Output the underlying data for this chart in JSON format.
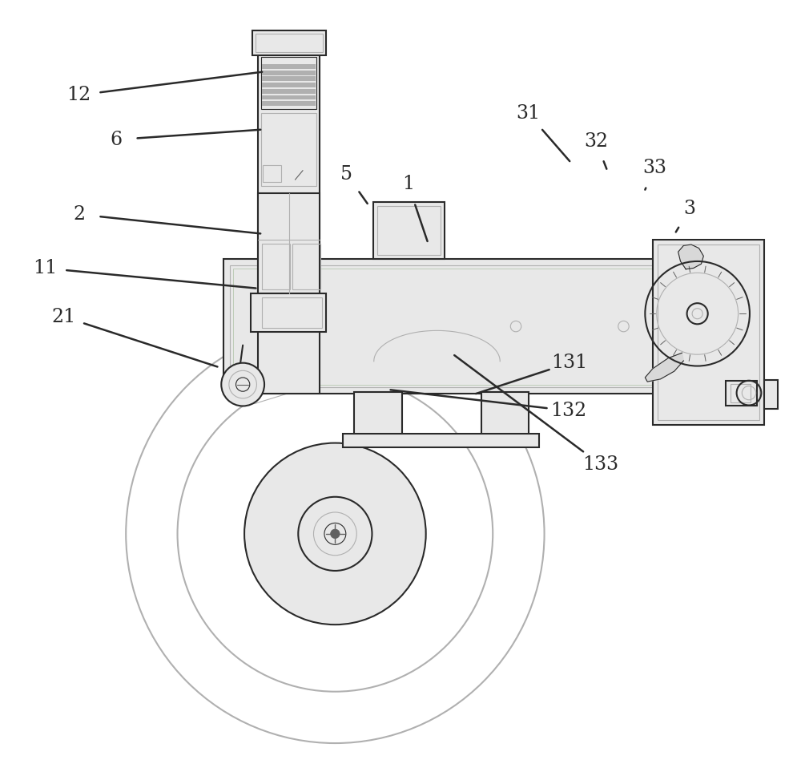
{
  "background_color": "#ffffff",
  "lc": "#2a2a2a",
  "lg": "#d8d8d8",
  "mg": "#b0b0b0",
  "vlg": "#e8e8e8",
  "dg": "#606060",
  "purple_tint": "#c0b8d0",
  "green_tint": "#b8c8b0",
  "fig_width": 10.0,
  "fig_height": 9.63,
  "dpi": 100,
  "label_fontsize": 17,
  "annot_lw": 1.8,
  "annotations": {
    "12": {
      "lp": [
        0.082,
        0.878
      ],
      "le": [
        0.32,
        0.908
      ]
    },
    "6": {
      "lp": [
        0.13,
        0.82
      ],
      "le": [
        0.318,
        0.833
      ]
    },
    "2": {
      "lp": [
        0.082,
        0.723
      ],
      "le": [
        0.318,
        0.698
      ]
    },
    "11": {
      "lp": [
        0.038,
        0.653
      ],
      "le": [
        0.312,
        0.627
      ]
    },
    "21": {
      "lp": [
        0.062,
        0.59
      ],
      "le": [
        0.262,
        0.525
      ]
    },
    "5": {
      "lp": [
        0.43,
        0.775
      ],
      "le": [
        0.457,
        0.737
      ]
    },
    "1": {
      "lp": [
        0.51,
        0.762
      ],
      "le": [
        0.535,
        0.688
      ]
    },
    "31": {
      "lp": [
        0.666,
        0.854
      ],
      "le": [
        0.72,
        0.792
      ]
    },
    "32": {
      "lp": [
        0.754,
        0.818
      ],
      "le": [
        0.768,
        0.782
      ]
    },
    "33": {
      "lp": [
        0.83,
        0.783
      ],
      "le": [
        0.818,
        0.755
      ]
    },
    "3": {
      "lp": [
        0.876,
        0.73
      ],
      "le": [
        0.858,
        0.7
      ]
    },
    "131": {
      "lp": [
        0.72,
        0.53
      ],
      "le": [
        0.598,
        0.49
      ]
    },
    "132": {
      "lp": [
        0.718,
        0.468
      ],
      "le": [
        0.487,
        0.495
      ]
    },
    "133": {
      "lp": [
        0.76,
        0.398
      ],
      "le": [
        0.57,
        0.54
      ]
    }
  }
}
